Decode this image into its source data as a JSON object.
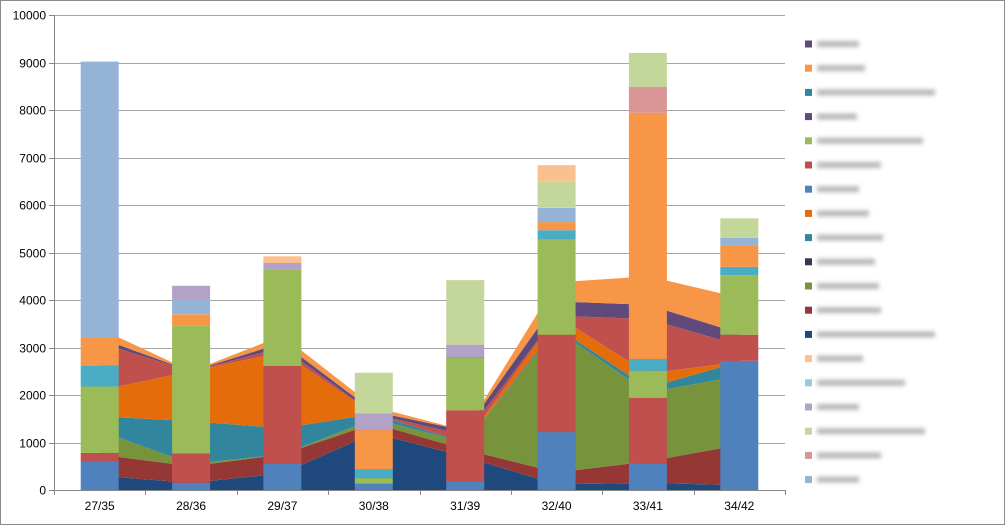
{
  "chart_data": {
    "type": "bar",
    "stacked": true,
    "title": "",
    "xlabel": "",
    "ylabel": "",
    "ylim": [
      0,
      10000
    ],
    "yticks": [
      0,
      1000,
      2000,
      3000,
      4000,
      5000,
      6000,
      7000,
      8000,
      9000,
      10000
    ],
    "grid": true,
    "legend_position": "right",
    "categories": [
      "27/35",
      "28/36",
      "29/37",
      "30/38",
      "31/39",
      "32/40",
      "33/41",
      "34/42"
    ],
    "bar_series": [
      {
        "name": "",
        "color": "#4f81bd",
        "values": [
          600,
          150,
          550,
          130,
          180,
          1220,
          560,
          2720
        ]
      },
      {
        "name": "",
        "color": "#c0504d",
        "values": [
          180,
          620,
          2060,
          0,
          1500,
          2050,
          1380,
          550
        ]
      },
      {
        "name": "",
        "color": "#9bbb59",
        "values": [
          1400,
          2700,
          2030,
          120,
          1100,
          2000,
          570,
          1250
        ]
      },
      {
        "name": "",
        "color": "#4bacc6",
        "values": [
          440,
          0,
          0,
          180,
          20,
          200,
          250,
          180
        ]
      },
      {
        "name": "",
        "color": "#f79646",
        "values": [
          580,
          230,
          0,
          830,
          0,
          170,
          5180,
          450
        ]
      },
      {
        "name": "",
        "color": "#95b3d7",
        "values": [
          0,
          320,
          0,
          0,
          0,
          300,
          0,
          160
        ]
      },
      {
        "name": "",
        "color": "#b3a2c7",
        "values": [
          0,
          280,
          140,
          350,
          260,
          0,
          0,
          0
        ]
      },
      {
        "name": "",
        "color": "#c4d79b",
        "values": [
          0,
          0,
          0,
          860,
          1360,
          550,
          0,
          410
        ]
      },
      {
        "name": "",
        "color": "#fac090",
        "values": [
          0,
          0,
          140,
          0,
          0,
          350,
          0,
          0
        ]
      },
      {
        "name": "",
        "color": "#da9694",
        "values": [
          0,
          0,
          0,
          0,
          0,
          0,
          550,
          0
        ]
      },
      {
        "name": "",
        "color": "#c4d79b",
        "values": [
          0,
          0,
          0,
          0,
          0,
          0,
          710,
          0
        ]
      },
      {
        "name": "",
        "color": "#95b3d7",
        "values": [
          5820,
          0,
          0,
          0,
          0,
          0,
          0,
          0
        ]
      }
    ],
    "area_series": [
      {
        "name": "",
        "color": "#1f497d",
        "values": [
          300,
          150,
          350,
          1200,
          700,
          120,
          150,
          100
        ]
      },
      {
        "name": "",
        "color": "#953735",
        "values": [
          450,
          350,
          400,
          200,
          150,
          250,
          450,
          850
        ]
      },
      {
        "name": "",
        "color": "#77933c",
        "values": [
          500,
          50,
          0,
          100,
          150,
          3000,
          1450,
          1450
        ]
      },
      {
        "name": "",
        "color": "#31859c",
        "values": [
          300,
          900,
          550,
          100,
          0,
          50,
          100,
          300
        ]
      },
      {
        "name": "",
        "color": "#e46c0a",
        "values": [
          550,
          1050,
          1600,
          0,
          0,
          250,
          300,
          0
        ]
      },
      {
        "name": "",
        "color": "#c0504d",
        "values": [
          1000,
          0,
          100,
          0,
          150,
          0,
          1150,
          350
        ]
      },
      {
        "name": "",
        "color": "#604a7b",
        "values": [
          100,
          0,
          100,
          50,
          100,
          300,
          300,
          250
        ]
      },
      {
        "name": "",
        "color": "#f79646",
        "values": [
          200,
          0,
          150,
          100,
          0,
          400,
          600,
          750
        ]
      }
    ],
    "legend": [
      {
        "label": "",
        "color": "#604a7b"
      },
      {
        "label": "",
        "color": "#f79646"
      },
      {
        "label": "",
        "color": "#31859c"
      },
      {
        "label": "",
        "color": "#604a7b"
      },
      {
        "label": "",
        "color": "#9bbb59"
      },
      {
        "label": "",
        "color": "#c0504d"
      },
      {
        "label": "",
        "color": "#4f81bd"
      },
      {
        "label": "",
        "color": "#e46c0a"
      },
      {
        "label": "",
        "color": "#31859c"
      },
      {
        "label": "",
        "color": "#403151"
      },
      {
        "label": "",
        "color": "#77933c"
      },
      {
        "label": "",
        "color": "#953735"
      },
      {
        "label": "",
        "color": "#1f497d"
      },
      {
        "label": "",
        "color": "#fac090"
      },
      {
        "label": "",
        "color": "#93cddd"
      },
      {
        "label": "",
        "color": "#b3a2c7"
      },
      {
        "label": "",
        "color": "#c4d79b"
      },
      {
        "label": "",
        "color": "#da9694"
      },
      {
        "label": "",
        "color": "#95b3d7"
      }
    ]
  }
}
